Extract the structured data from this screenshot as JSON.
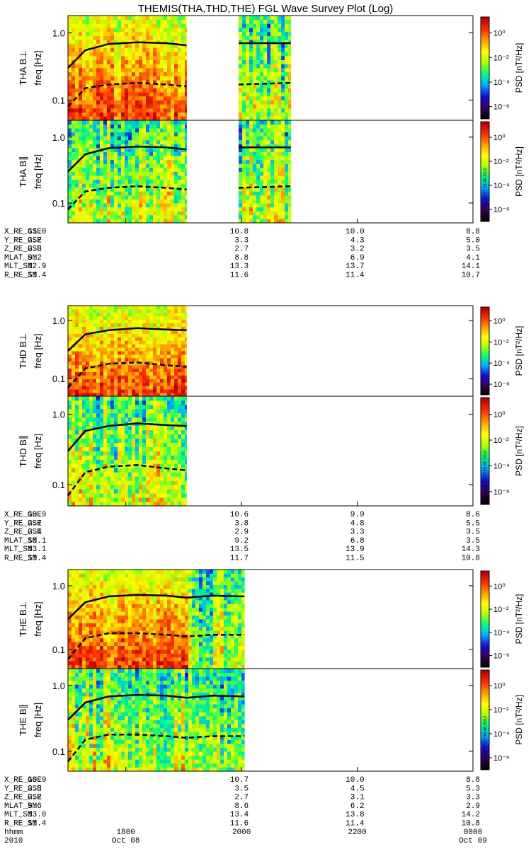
{
  "title": "THEMIS(THA,THD,THE) FGL Wave Survey Plot (Log)",
  "colorbar": {
    "label": "PSD [nT²/Hz]",
    "ticks": [
      "10⁰",
      "10⁻²",
      "10⁻⁴",
      "10⁻⁶"
    ],
    "tick_values": [
      0,
      -2,
      -4,
      -6
    ],
    "range_log": [
      -7,
      1.3
    ],
    "stamp": "Mon Sep 17 07:35:46 2012",
    "colors": [
      "#000000",
      "#3a0060",
      "#1010e0",
      "#00b0ff",
      "#00ff80",
      "#b0ff00",
      "#ffff00",
      "#ffa000",
      "#ff3000",
      "#c00000"
    ]
  },
  "freq_axis": {
    "label": "freq [Hz]",
    "ticks": [
      "1.0",
      "0.1"
    ],
    "tick_values": [
      1.0,
      0.1
    ],
    "range": [
      0.05,
      1.8
    ],
    "scale": "log"
  },
  "time_axis": {
    "range_hours": [
      17,
      24
    ],
    "tick_hours": [
      18,
      20,
      22,
      24
    ],
    "row_labels": [
      "hhmm",
      "2010"
    ],
    "tick_labels": [
      "1800",
      "2000",
      "2200",
      "0000"
    ],
    "date_labels": [
      "Oct 08",
      "Oct 09"
    ]
  },
  "ephem_labels": [
    "X_RE_GSE",
    "Y_RE_GSE",
    "Z_RE_GSE",
    "MLAT_SM",
    "MLT_SM",
    "R_RE_SM"
  ],
  "chart_data": [
    {
      "type": "heatmap",
      "probe": "THA",
      "panels": [
        {
          "ylabel": "THA B⊥",
          "component": "perp"
        },
        {
          "ylabel": "THA B∥",
          "component": "par"
        }
      ],
      "data_intervals_hours": [
        [
          17.0,
          19.05
        ],
        [
          19.95,
          20.85
        ]
      ],
      "fce_line_hz": {
        "x": [
          17.0,
          17.3,
          17.7,
          18.2,
          18.7,
          19.05,
          19.95,
          20.85
        ],
        "y": [
          0.3,
          0.55,
          0.68,
          0.72,
          0.7,
          0.65,
          0.7,
          0.7
        ]
      },
      "fce_dashed_hz": {
        "x": [
          17.0,
          17.3,
          17.7,
          18.2,
          18.7,
          19.05,
          19.95,
          20.85
        ],
        "y": [
          0.08,
          0.15,
          0.17,
          0.18,
          0.17,
          0.16,
          0.17,
          0.18
        ]
      },
      "ephemeris": [
        [
          "11.0",
          "10.8",
          "10.0",
          "8.8"
        ],
        [
          "2.2",
          "3.3",
          "4.3",
          "5.0"
        ],
        [
          "2.0",
          "2.7",
          "3.2",
          "3.5"
        ],
        [
          "9.2",
          "8.8",
          "6.9",
          "4.1"
        ],
        [
          "12.9",
          "13.3",
          "13.7",
          "14.1"
        ],
        [
          "11.4",
          "11.6",
          "11.4",
          "10.7"
        ]
      ]
    },
    {
      "type": "heatmap",
      "probe": "THD",
      "panels": [
        {
          "ylabel": "THD B⊥",
          "component": "perp"
        },
        {
          "ylabel": "THD B∥",
          "component": "par"
        }
      ],
      "data_intervals_hours": [
        [
          17.0,
          19.05
        ]
      ],
      "fce_line_hz": {
        "x": [
          17.0,
          17.3,
          17.7,
          18.2,
          18.7,
          19.05
        ],
        "y": [
          0.3,
          0.58,
          0.68,
          0.74,
          0.7,
          0.68
        ]
      },
      "fce_dashed_hz": {
        "x": [
          17.0,
          17.3,
          17.7,
          18.2,
          18.7,
          19.05
        ],
        "y": [
          0.07,
          0.15,
          0.18,
          0.19,
          0.17,
          0.16
        ]
      },
      "ephemeris": [
        [
          "10.9",
          "10.6",
          "9.9",
          "8.6"
        ],
        [
          "2.7",
          "3.8",
          "4.8",
          "5.5"
        ],
        [
          "2.4",
          "2.9",
          "3.3",
          "3.5"
        ],
        [
          "10.1",
          "9.2",
          "6.8",
          "3.5"
        ],
        [
          "13.1",
          "13.5",
          "13.9",
          "14.3"
        ],
        [
          "11.4",
          "11.7",
          "11.5",
          "10.8"
        ]
      ]
    },
    {
      "type": "heatmap",
      "probe": "THE",
      "panels": [
        {
          "ylabel": "THE B⊥",
          "component": "perp"
        },
        {
          "ylabel": "THE B∥",
          "component": "par"
        }
      ],
      "data_intervals_hours": [
        [
          17.0,
          20.05
        ]
      ],
      "fce_line_hz": {
        "x": [
          17.0,
          17.3,
          17.7,
          18.2,
          18.7,
          19.05,
          19.5,
          20.05
        ],
        "y": [
          0.3,
          0.55,
          0.68,
          0.72,
          0.7,
          0.65,
          0.7,
          0.68
        ]
      },
      "fce_dashed_hz": {
        "x": [
          17.0,
          17.3,
          17.7,
          18.2,
          18.7,
          19.05,
          19.5,
          20.05
        ],
        "y": [
          0.07,
          0.15,
          0.18,
          0.18,
          0.17,
          0.16,
          0.17,
          0.17
        ]
      },
      "ephemeris": [
        [
          "10.9",
          "10.7",
          "10.0",
          "8.8"
        ],
        [
          "2.3",
          "3.5",
          "4.5",
          "5.3"
        ],
        [
          "2.2",
          "2.7",
          "3.1",
          "3.3"
        ],
        [
          "9.6",
          "8.6",
          "6.2",
          "2.9"
        ],
        [
          "13.0",
          "13.4",
          "13.8",
          "14.2"
        ],
        [
          "11.4",
          "11.6",
          "11.4",
          "10.8"
        ]
      ]
    }
  ]
}
